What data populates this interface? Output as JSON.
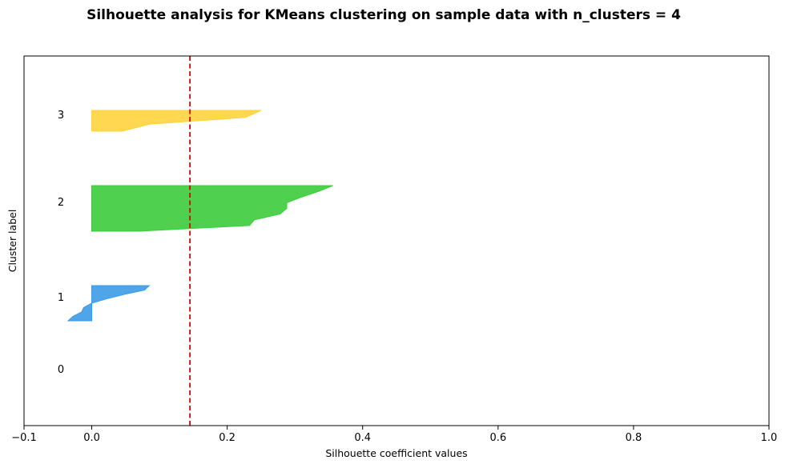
{
  "chart_data": {
    "type": "area",
    "title": "Silhouette analysis for KMeans clustering on sample data with n_clusters = 4",
    "xlabel": "Silhouette coefficient values",
    "ylabel": "Cluster label",
    "xlim": [
      -0.1,
      1.0
    ],
    "x_ticks": [
      -0.1,
      0.0,
      0.2,
      0.4,
      0.6,
      0.8,
      1.0
    ],
    "x_tick_labels": [
      "−0.1",
      "0.0",
      "0.2",
      "0.4",
      "0.6",
      "0.8",
      "1.0"
    ],
    "average_silhouette_score": 0.145,
    "reference_line_color": "#e00000",
    "grid": false,
    "legend": "none",
    "clusters": [
      {
        "label": "0",
        "color": "#8a2be2",
        "silhouette_values": []
      },
      {
        "label": "1",
        "color": "#3d9be6",
        "silhouette_values": [
          0.085,
          0.078,
          0.048,
          0.022,
          0.0,
          -0.012,
          -0.015,
          -0.028,
          -0.035
        ]
      },
      {
        "label": "2",
        "color": "#3ccc3c",
        "silhouette_values": [
          0.356,
          0.335,
          0.31,
          0.288,
          0.288,
          0.278,
          0.24,
          0.233,
          0.07
        ]
      },
      {
        "label": "3",
        "color": "#ffd33d",
        "silhouette_values": [
          0.25,
          0.227,
          0.085,
          0.045
        ]
      }
    ]
  }
}
